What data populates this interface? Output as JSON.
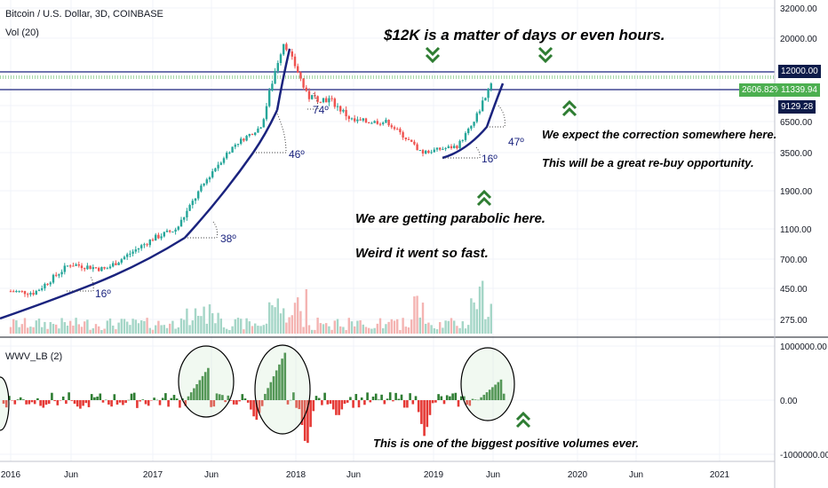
{
  "header": {
    "symbol": "Bitcoin / U.S. Dollar, 3D, COINBASE",
    "volume_label": "Vol (20)",
    "indicator_label": "WWV_LB (2)"
  },
  "colors": {
    "up": "#26a69a",
    "down": "#ef5350",
    "wwv_up": "#2e7d32",
    "wwv_down": "#e53935",
    "trendline": "#1a237e",
    "hline": "#1a237e",
    "arrow": "#2e7d32",
    "badge_green": "#4caf50",
    "badge_navy": "#0d1b4a"
  },
  "annotations": {
    "top": "$12K is a matter of days or even hours.",
    "parabolic": "We are getting parabolic here.",
    "fast": "Weird it went so fast.",
    "correction": "We expect the correction somewhere here.",
    "rebuy": "This will be a great re-buy opportunity.",
    "volume": "This is one of the biggest positive volumes ever."
  },
  "angles": [
    "16º",
    "38º",
    "46º",
    "74º",
    "16º",
    "47º"
  ],
  "price_badges": {
    "percent": "2606.82%",
    "current": "11339.94",
    "level_top": "12000.00",
    "level_bottom": "9129.28"
  },
  "chart_data": [
    {
      "type": "candlestick",
      "title": "Bitcoin / U.S. Dollar, 3D, COINBASE",
      "scale": "log",
      "y_ticks": [
        "32000.00",
        "20000.00",
        "12000.00",
        "9129.28",
        "6500.00",
        "3500.00",
        "1900.00",
        "1100.00",
        "700.00",
        "450.00",
        "275.00"
      ],
      "x_ticks": [
        "2016",
        "Jun",
        "2017",
        "Jun",
        "2018",
        "Jun",
        "2019",
        "Jun",
        "2020",
        "Jun",
        "2021"
      ],
      "x": [
        "2016-01",
        "2016-03",
        "2016-06",
        "2016-09",
        "2017-01",
        "2017-03",
        "2017-06",
        "2017-08",
        "2017-10",
        "2017-12",
        "2018-02",
        "2018-04",
        "2018-06",
        "2018-09",
        "2018-11",
        "2018-12",
        "2019-03",
        "2019-05",
        "2019-06"
      ],
      "y": [
        430,
        420,
        650,
        600,
        950,
        1100,
        2600,
        4200,
        5800,
        19000,
        8800,
        8500,
        6500,
        6400,
        4300,
        3500,
        4000,
        8000,
        11339.94
      ],
      "horizontal_levels": [
        12000,
        9129.28
      ],
      "grid": true
    },
    {
      "type": "bar",
      "name": "Vol (20)",
      "note": "volume histogram under price"
    },
    {
      "type": "bar",
      "name": "WWV_LB (2)",
      "y_ticks": [
        "1000000.00",
        "0.00",
        "-1000000.00"
      ],
      "highlighted_peaks": [
        "2017-05",
        "2017-12",
        "2019-06"
      ]
    }
  ]
}
